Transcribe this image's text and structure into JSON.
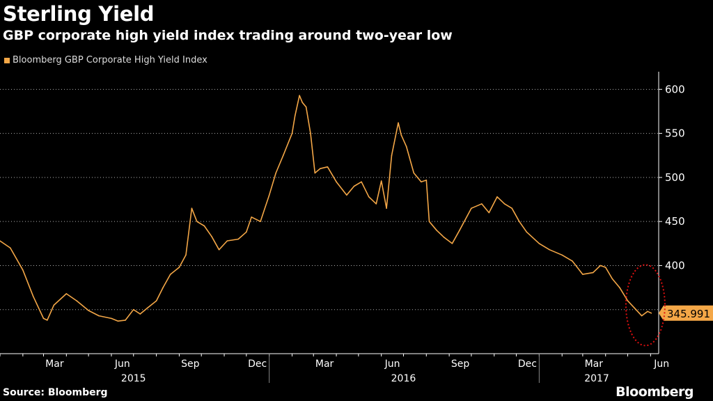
{
  "header": {
    "title": "Sterling Yield",
    "subtitle": "GBP corporate high yield index trading around two-year low"
  },
  "footer": {
    "source": "Source: Bloomberg",
    "brand": "Bloomberg"
  },
  "colors": {
    "line": "#f4a747",
    "background": "#000000",
    "grid": "#ffffff",
    "circle": "#e01010"
  },
  "chart_data": {
    "type": "line",
    "grid": true,
    "grid_style": "dotted horizontal",
    "y_axis_side": "right",
    "ylim": [
      300,
      620
    ],
    "yticks": [
      400,
      450,
      500,
      550,
      600
    ],
    "xlabel": "",
    "ylabel": "",
    "legend": "top-left",
    "month_labels": [
      "Mar",
      "Jun",
      "Sep",
      "Dec",
      "Mar",
      "Jun",
      "Sep",
      "Dec",
      "Mar",
      "Jun"
    ],
    "year_labels": [
      "2015",
      "2016",
      "2017"
    ],
    "series": [
      {
        "name": "Bloomberg GBP Corporate High Yield Index",
        "last_value_label": "345.991",
        "points": [
          [
            "2015-01-01",
            428
          ],
          [
            "2015-01-15",
            420
          ],
          [
            "2015-02-01",
            395
          ],
          [
            "2015-02-15",
            365
          ],
          [
            "2015-03-01",
            340
          ],
          [
            "2015-03-06",
            338
          ],
          [
            "2015-03-15",
            355
          ],
          [
            "2015-04-01",
            368
          ],
          [
            "2015-04-15",
            360
          ],
          [
            "2015-05-01",
            349
          ],
          [
            "2015-05-15",
            343
          ],
          [
            "2015-06-01",
            340
          ],
          [
            "2015-06-10",
            337
          ],
          [
            "2015-06-20",
            338
          ],
          [
            "2015-07-01",
            350
          ],
          [
            "2015-07-10",
            345
          ],
          [
            "2015-07-20",
            352
          ],
          [
            "2015-08-01",
            360
          ],
          [
            "2015-08-10",
            375
          ],
          [
            "2015-08-20",
            390
          ],
          [
            "2015-09-01",
            398
          ],
          [
            "2015-09-10",
            412
          ],
          [
            "2015-09-18",
            465
          ],
          [
            "2015-09-25",
            450
          ],
          [
            "2015-10-05",
            445
          ],
          [
            "2015-10-15",
            433
          ],
          [
            "2015-10-25",
            418
          ],
          [
            "2015-11-05",
            428
          ],
          [
            "2015-11-20",
            430
          ],
          [
            "2015-12-01",
            438
          ],
          [
            "2015-12-08",
            455
          ],
          [
            "2015-12-20",
            450
          ],
          [
            "2016-01-01",
            480
          ],
          [
            "2016-01-10",
            505
          ],
          [
            "2016-01-20",
            525
          ],
          [
            "2016-02-01",
            550
          ],
          [
            "2016-02-05",
            570
          ],
          [
            "2016-02-11",
            593
          ],
          [
            "2016-02-15",
            585
          ],
          [
            "2016-02-20",
            580
          ],
          [
            "2016-02-26",
            550
          ],
          [
            "2016-03-03",
            505
          ],
          [
            "2016-03-10",
            510
          ],
          [
            "2016-03-20",
            512
          ],
          [
            "2016-04-01",
            495
          ],
          [
            "2016-04-15",
            480
          ],
          [
            "2016-04-25",
            490
          ],
          [
            "2016-05-05",
            495
          ],
          [
            "2016-05-15",
            478
          ],
          [
            "2016-05-25",
            470
          ],
          [
            "2016-06-01",
            496
          ],
          [
            "2016-06-08",
            465
          ],
          [
            "2016-06-15",
            525
          ],
          [
            "2016-06-24",
            562
          ],
          [
            "2016-06-28",
            548
          ],
          [
            "2016-07-05",
            535
          ],
          [
            "2016-07-15",
            505
          ],
          [
            "2016-07-25",
            495
          ],
          [
            "2016-08-01",
            497
          ],
          [
            "2016-08-05",
            450
          ],
          [
            "2016-08-15",
            440
          ],
          [
            "2016-08-25",
            432
          ],
          [
            "2016-09-05",
            425
          ],
          [
            "2016-09-15",
            440
          ],
          [
            "2016-10-01",
            465
          ],
          [
            "2016-10-15",
            470
          ],
          [
            "2016-10-25",
            460
          ],
          [
            "2016-11-05",
            478
          ],
          [
            "2016-11-15",
            470
          ],
          [
            "2016-11-25",
            465
          ],
          [
            "2016-12-05",
            450
          ],
          [
            "2016-12-15",
            438
          ],
          [
            "2017-01-01",
            425
          ],
          [
            "2017-01-15",
            418
          ],
          [
            "2017-02-01",
            412
          ],
          [
            "2017-02-15",
            405
          ],
          [
            "2017-03-01",
            390
          ],
          [
            "2017-03-15",
            392
          ],
          [
            "2017-03-25",
            400
          ],
          [
            "2017-04-01",
            398
          ],
          [
            "2017-04-10",
            385
          ],
          [
            "2017-04-20",
            375
          ],
          [
            "2017-05-01",
            360
          ],
          [
            "2017-05-10",
            352
          ],
          [
            "2017-05-20",
            343
          ],
          [
            "2017-05-28",
            348
          ],
          [
            "2017-06-02",
            345.991
          ]
        ]
      }
    ],
    "annotation": "red dotted ellipse around latest values"
  }
}
